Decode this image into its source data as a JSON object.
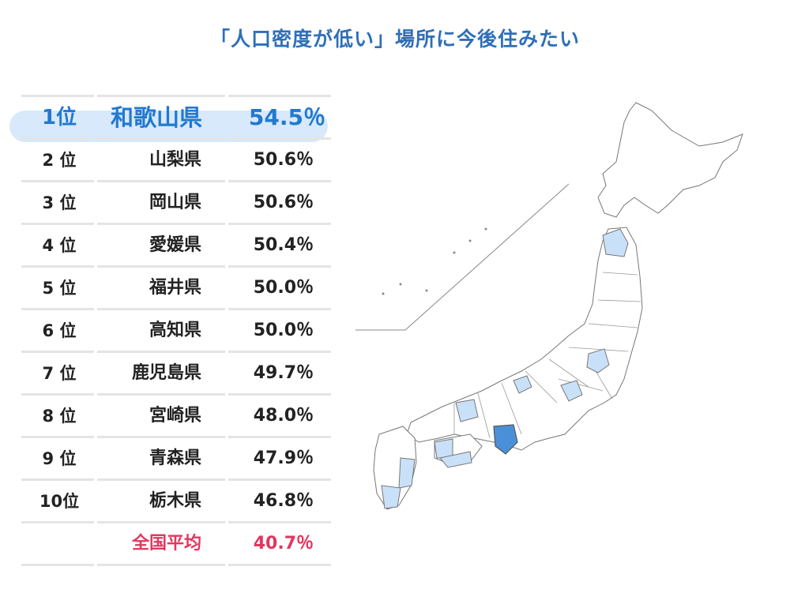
{
  "title": "「人口密度が低い」場所に今後住みたい",
  "rows": [
    {
      "rank": "1位",
      "prefecture": "和歌山県",
      "value": "54.5％",
      "highlight": "top"
    },
    {
      "rank": "2 位",
      "prefecture": "山梨県",
      "value": "50.6％"
    },
    {
      "rank": "3 位",
      "prefecture": "岡山県",
      "value": "50.6％"
    },
    {
      "rank": "4 位",
      "prefecture": "愛媛県",
      "value": "50.4％"
    },
    {
      "rank": "5 位",
      "prefecture": "福井県",
      "value": "50.0％"
    },
    {
      "rank": "6 位",
      "prefecture": "高知県",
      "value": "50.0％"
    },
    {
      "rank": "7 位",
      "prefecture": "鹿児島県",
      "value": "49.7％"
    },
    {
      "rank": "8 位",
      "prefecture": "宮崎県",
      "value": "48.0％"
    },
    {
      "rank": "9 位",
      "prefecture": "青森県",
      "value": "47.9％"
    },
    {
      "rank": "10位",
      "prefecture": "栃木県",
      "value": "46.8％"
    },
    {
      "rank": "",
      "prefecture": "全国平均",
      "value": "40.7％",
      "highlight": "avg"
    }
  ],
  "colors": {
    "title": "#2f6fb8",
    "top_text": "#2279d0",
    "top_pill": "#d7e9fb",
    "average_text": "#e2365f",
    "map_highlight_light": "#c9e1f8",
    "map_highlight_strong": "#4a90d9",
    "map_outline": "#777777"
  },
  "map": {
    "highlighted_prefectures": [
      "和歌山県",
      "山梨県",
      "岡山県",
      "愛媛県",
      "福井県",
      "高知県",
      "鹿児島県",
      "宮崎県",
      "青森県",
      "栃木県"
    ],
    "strongest": "和歌山県"
  }
}
